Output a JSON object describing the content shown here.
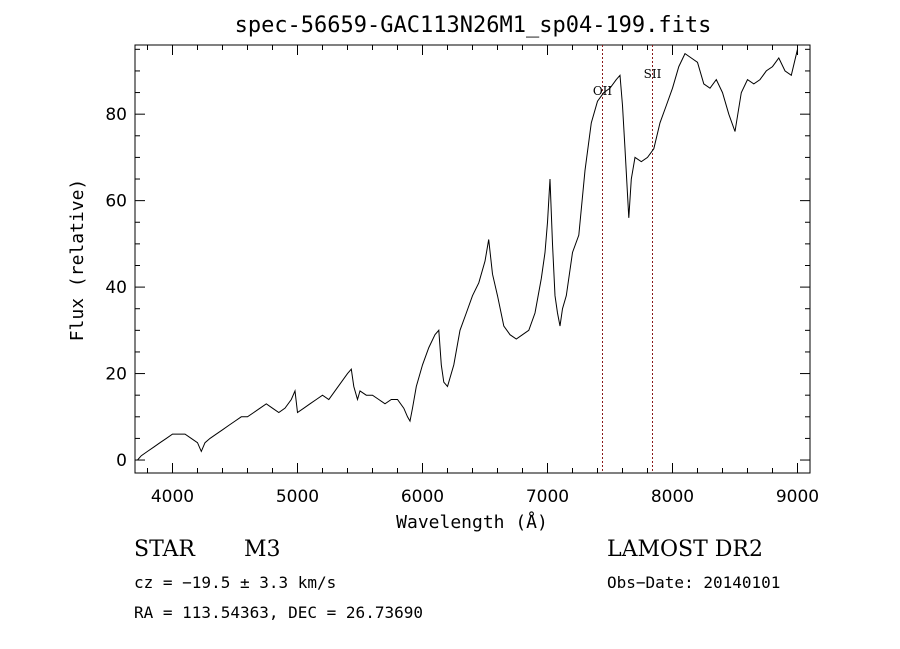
{
  "chart_data": {
    "type": "line",
    "title": "spec-56659-GAC113N26M1_sp04-199.fits",
    "xlabel": "Wavelength (Å)",
    "ylabel": "Flux (relative)",
    "xlim": [
      3700,
      9100
    ],
    "ylim": [
      -3,
      96
    ],
    "xticks": [
      4000,
      5000,
      6000,
      7000,
      8000,
      9000
    ],
    "yticks": [
      0,
      20,
      40,
      60,
      80
    ],
    "grid": false,
    "line_color": "#000000",
    "marker_color": "#8b1a1a",
    "lines": [
      {
        "label": "OII",
        "x": 7440
      },
      {
        "label": "SII",
        "x": 7840
      }
    ],
    "series": [
      {
        "x": [
          3720,
          3750,
          3800,
          3850,
          3900,
          3950,
          4000,
          4050,
          4100,
          4150,
          4200,
          4230,
          4260,
          4300,
          4350,
          4400,
          4450,
          4500,
          4550,
          4600,
          4650,
          4700,
          4750,
          4800,
          4850,
          4900,
          4950,
          4980,
          5000,
          5050,
          5100,
          5150,
          5200,
          5250,
          5300,
          5350,
          5400,
          5430,
          5450,
          5480,
          5500,
          5550,
          5600,
          5650,
          5700,
          5750,
          5800,
          5850,
          5880,
          5900,
          5920,
          5950,
          6000,
          6050,
          6100,
          6130,
          6150,
          6170,
          6200,
          6250,
          6300,
          6350,
          6400,
          6450,
          6500,
          6530,
          6560,
          6600,
          6650,
          6700,
          6750,
          6800,
          6850,
          6900,
          6950,
          6980,
          7000,
          7020,
          7040,
          7060,
          7080,
          7100,
          7120,
          7150,
          7200,
          7250,
          7300,
          7350,
          7400,
          7450,
          7500,
          7550,
          7580,
          7600,
          7620,
          7650,
          7670,
          7700,
          7750,
          7800,
          7850,
          7900,
          7950,
          8000,
          8050,
          8100,
          8150,
          8200,
          8250,
          8300,
          8350,
          8400,
          8450,
          8500,
          8550,
          8600,
          8650,
          8700,
          8750,
          8800,
          8850,
          8900,
          8950,
          9000
        ],
        "y": [
          0,
          1,
          2,
          3,
          4,
          5,
          6,
          6,
          6,
          5,
          4,
          2,
          4,
          5,
          6,
          7,
          8,
          9,
          10,
          10,
          11,
          12,
          13,
          12,
          11,
          12,
          14,
          16,
          11,
          12,
          13,
          14,
          15,
          14,
          16,
          18,
          20,
          21,
          17,
          14,
          16,
          15,
          15,
          14,
          13,
          14,
          14,
          12,
          10,
          9,
          12,
          17,
          22,
          26,
          29,
          30,
          22,
          18,
          17,
          22,
          30,
          34,
          38,
          41,
          46,
          51,
          43,
          38,
          31,
          29,
          28,
          29,
          30,
          34,
          42,
          48,
          55,
          65,
          50,
          38,
          34,
          31,
          35,
          38,
          48,
          52,
          67,
          78,
          83,
          85,
          86,
          88,
          89,
          82,
          72,
          56,
          65,
          70,
          69,
          70,
          72,
          78,
          82,
          86,
          91,
          94,
          93,
          92,
          87,
          86,
          88,
          85,
          80,
          76,
          85,
          88,
          87,
          88,
          90,
          91,
          93,
          90,
          89,
          95
        ]
      }
    ]
  },
  "info": {
    "obj_class": "STAR",
    "obj_subclass": "M3",
    "survey": "LAMOST DR2",
    "cz": "cz = −19.5 ± 3.3 km/s",
    "obs_date": "Obs−Date: 20140101",
    "radec": "RA = 113.54363, DEC =  26.73690"
  }
}
